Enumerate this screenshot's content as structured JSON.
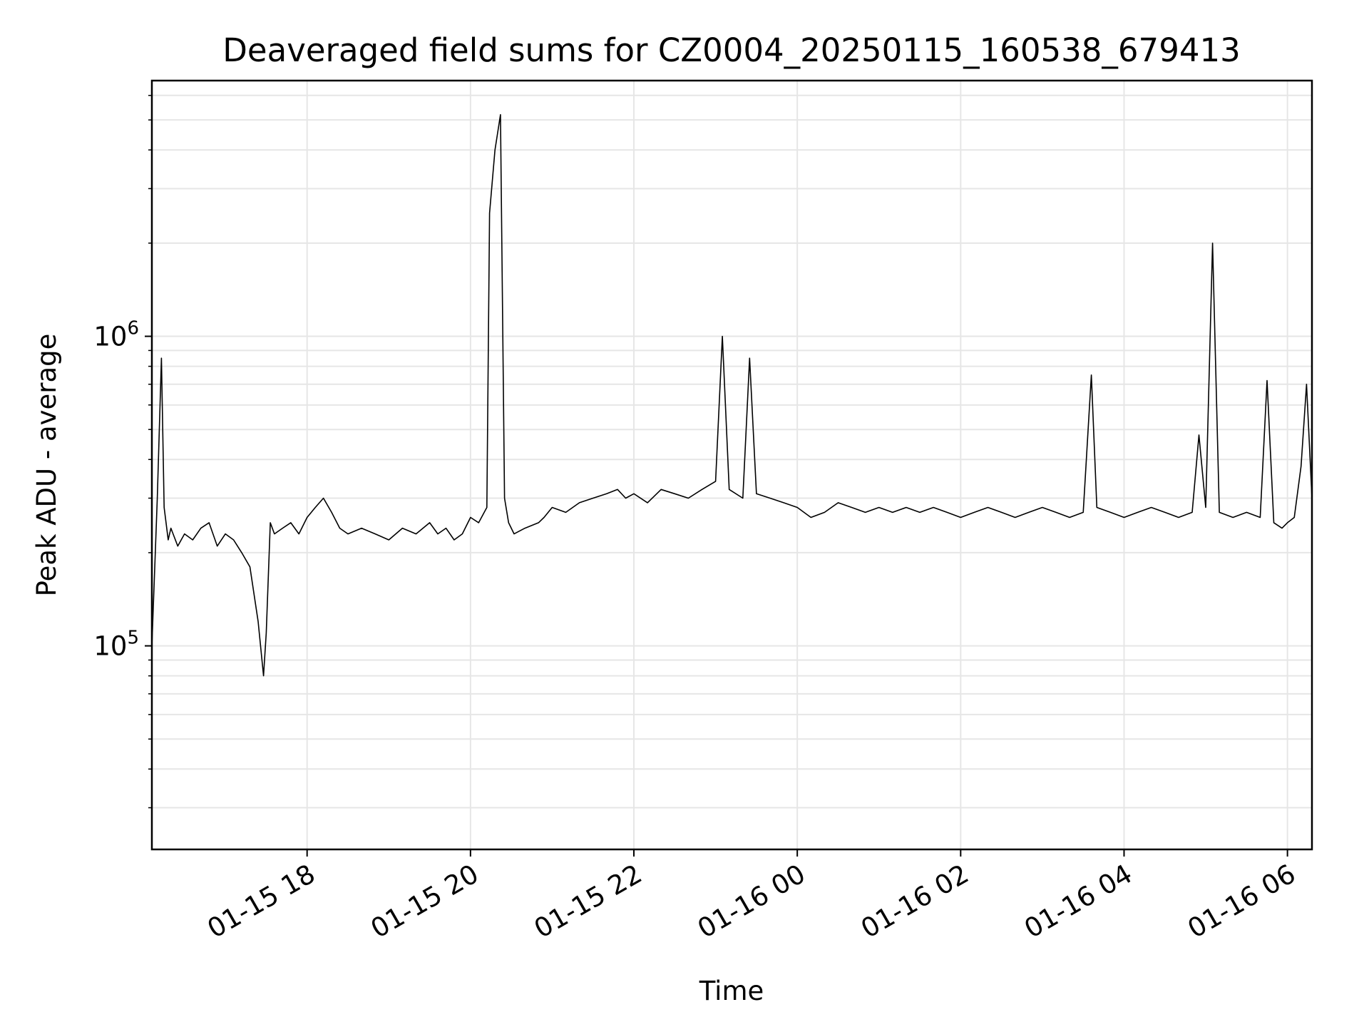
{
  "chart_data": {
    "type": "line",
    "title": "Deaveraged field sums for CZ0004_20250115_160538_679413",
    "xlabel": "Time",
    "ylabel": "Peak ADU - average",
    "yscale": "log",
    "ylim": [
      22000,
      6700000
    ],
    "xlim": [
      "2025-01-15 16:06",
      "2025-01-16 06:18"
    ],
    "grid": true,
    "line_color": "#000000",
    "x_tick_labels": [
      "01-15 18",
      "01-15 20",
      "01-15 22",
      "01-16 00",
      "01-16 02",
      "01-16 04",
      "01-16 06"
    ],
    "x_ticks": [
      "2025-01-15 18:00",
      "2025-01-15 20:00",
      "2025-01-15 22:00",
      "2025-01-16 00:00",
      "2025-01-16 02:00",
      "2025-01-16 04:00",
      "2025-01-16 06:00"
    ],
    "y_ticks": [
      100000,
      1000000
    ],
    "y_tick_labels": [
      {
        "base": "10",
        "exp": "5"
      },
      {
        "base": "10",
        "exp": "6"
      }
    ],
    "series": [
      {
        "x": [
          "2025-01-15 16:06",
          "2025-01-15 16:10",
          "2025-01-15 16:13",
          "2025-01-15 16:15",
          "2025-01-15 16:18",
          "2025-01-15 16:20",
          "2025-01-15 16:25",
          "2025-01-15 16:30",
          "2025-01-15 16:36",
          "2025-01-15 16:42",
          "2025-01-15 16:48",
          "2025-01-15 16:54",
          "2025-01-15 17:00",
          "2025-01-15 17:06",
          "2025-01-15 17:12",
          "2025-01-15 17:18",
          "2025-01-15 17:24",
          "2025-01-15 17:28",
          "2025-01-15 17:30",
          "2025-01-15 17:33",
          "2025-01-15 17:36",
          "2025-01-15 17:42",
          "2025-01-15 17:48",
          "2025-01-15 17:54",
          "2025-01-15 18:00",
          "2025-01-15 18:06",
          "2025-01-15 18:12",
          "2025-01-15 18:18",
          "2025-01-15 18:24",
          "2025-01-15 18:30",
          "2025-01-15 18:40",
          "2025-01-15 18:50",
          "2025-01-15 19:00",
          "2025-01-15 19:10",
          "2025-01-15 19:20",
          "2025-01-15 19:30",
          "2025-01-15 19:36",
          "2025-01-15 19:42",
          "2025-01-15 19:48",
          "2025-01-15 19:54",
          "2025-01-15 20:00",
          "2025-01-15 20:06",
          "2025-01-15 20:12",
          "2025-01-15 20:14",
          "2025-01-15 20:18",
          "2025-01-15 20:22",
          "2025-01-15 20:25",
          "2025-01-15 20:28",
          "2025-01-15 20:32",
          "2025-01-15 20:40",
          "2025-01-15 20:50",
          "2025-01-15 20:54",
          "2025-01-15 21:00",
          "2025-01-15 21:10",
          "2025-01-15 21:20",
          "2025-01-15 21:30",
          "2025-01-15 21:40",
          "2025-01-15 21:48",
          "2025-01-15 21:54",
          "2025-01-15 22:00",
          "2025-01-15 22:10",
          "2025-01-15 22:20",
          "2025-01-15 22:30",
          "2025-01-15 22:40",
          "2025-01-15 22:50",
          "2025-01-15 23:00",
          "2025-01-15 23:05",
          "2025-01-15 23:10",
          "2025-01-15 23:20",
          "2025-01-15 23:25",
          "2025-01-15 23:30",
          "2025-01-15 23:40",
          "2025-01-15 23:50",
          "2025-01-16 00:00",
          "2025-01-16 00:10",
          "2025-01-16 00:20",
          "2025-01-16 00:30",
          "2025-01-16 00:40",
          "2025-01-16 00:50",
          "2025-01-16 01:00",
          "2025-01-16 01:10",
          "2025-01-16 01:20",
          "2025-01-16 01:30",
          "2025-01-16 01:40",
          "2025-01-16 01:50",
          "2025-01-16 02:00",
          "2025-01-16 02:10",
          "2025-01-16 02:20",
          "2025-01-16 02:30",
          "2025-01-16 02:40",
          "2025-01-16 02:50",
          "2025-01-16 03:00",
          "2025-01-16 03:10",
          "2025-01-16 03:20",
          "2025-01-16 03:30",
          "2025-01-16 03:36",
          "2025-01-16 03:40",
          "2025-01-16 03:50",
          "2025-01-16 04:00",
          "2025-01-16 04:10",
          "2025-01-16 04:20",
          "2025-01-16 04:30",
          "2025-01-16 04:40",
          "2025-01-16 04:50",
          "2025-01-16 04:55",
          "2025-01-16 05:00",
          "2025-01-16 05:05",
          "2025-01-16 05:10",
          "2025-01-16 05:20",
          "2025-01-16 05:30",
          "2025-01-16 05:40",
          "2025-01-16 05:45",
          "2025-01-16 05:50",
          "2025-01-16 05:56",
          "2025-01-16 06:00",
          "2025-01-16 06:05",
          "2025-01-16 06:10",
          "2025-01-16 06:14",
          "2025-01-16 06:18"
        ],
        "y": [
          100000,
          300000,
          850000,
          280000,
          220000,
          240000,
          210000,
          230000,
          220000,
          240000,
          250000,
          210000,
          230000,
          220000,
          200000,
          180000,
          120000,
          80000,
          110000,
          250000,
          230000,
          240000,
          250000,
          230000,
          260000,
          280000,
          300000,
          270000,
          240000,
          230000,
          240000,
          230000,
          220000,
          240000,
          230000,
          250000,
          230000,
          240000,
          220000,
          230000,
          260000,
          250000,
          280000,
          2500000,
          4000000,
          5200000,
          300000,
          250000,
          230000,
          240000,
          250000,
          260000,
          280000,
          270000,
          290000,
          300000,
          310000,
          320000,
          300000,
          310000,
          290000,
          320000,
          310000,
          300000,
          320000,
          340000,
          1000000,
          320000,
          300000,
          850000,
          310000,
          300000,
          290000,
          280000,
          260000,
          270000,
          290000,
          280000,
          270000,
          280000,
          270000,
          280000,
          270000,
          280000,
          270000,
          260000,
          270000,
          280000,
          270000,
          260000,
          270000,
          280000,
          270000,
          260000,
          270000,
          750000,
          280000,
          270000,
          260000,
          270000,
          280000,
          270000,
          260000,
          270000,
          480000,
          280000,
          2000000,
          270000,
          260000,
          270000,
          260000,
          720000,
          250000,
          240000,
          250000,
          260000,
          380000,
          700000,
          300000
        ]
      }
    ],
    "annotations": []
  }
}
